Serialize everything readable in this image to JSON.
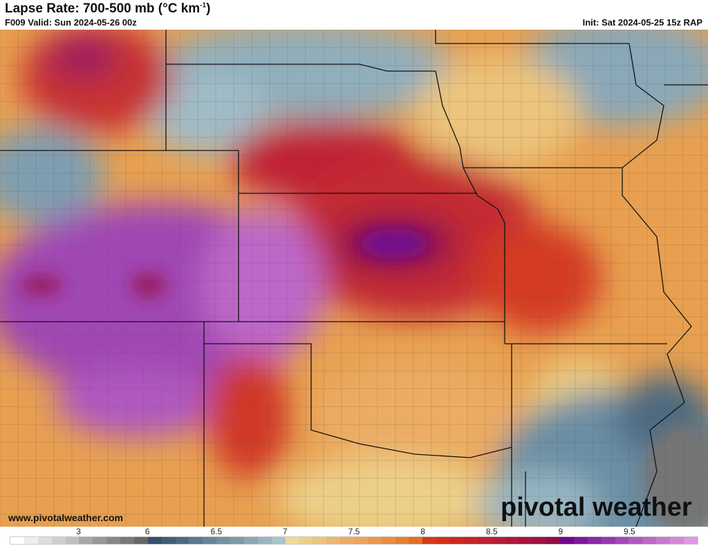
{
  "header": {
    "title": "Lapse Rate: 700-500 mb (°C km",
    "title_sup": "-1",
    "title_end": ")",
    "valid": "F009 Valid: Sun 2024-05-26 00z",
    "init": "Init: Sat 2024-05-25 15z RAP"
  },
  "footer": {
    "url": "www.pivotalweather.com",
    "brand": "pivotal weather"
  },
  "colorbar": {
    "labels": [
      {
        "text": "3",
        "cell": 5
      },
      {
        "text": "6",
        "cell": 10
      },
      {
        "text": "6.5",
        "cell": 15
      },
      {
        "text": "7",
        "cell": 20
      },
      {
        "text": "7.5",
        "cell": 25
      },
      {
        "text": "8",
        "cell": 30
      },
      {
        "text": "8.5",
        "cell": 35
      },
      {
        "text": "9",
        "cell": 40
      },
      {
        "text": "9.5",
        "cell": 45
      }
    ],
    "colors": [
      "#ffffff",
      "#eeeeee",
      "#dedede",
      "#d0d0d0",
      "#c0c0c0",
      "#a8a8a8",
      "#989898",
      "#888888",
      "#787878",
      "#686868",
      "#36506a",
      "#425e76",
      "#4e6a82",
      "#5a788e",
      "#678598",
      "#7492a2",
      "#8199a8",
      "#8ea6b2",
      "#9bb4bc",
      "#a8c4cc",
      "#ecdc94",
      "#ecd088",
      "#ecc47c",
      "#ecb870",
      "#ecac64",
      "#eca458",
      "#e8984c",
      "#e88c40",
      "#e48034",
      "#e07020",
      "#d83818",
      "#d43018",
      "#cc2820",
      "#c82428",
      "#c02030",
      "#b81c34",
      "#b01838",
      "#a8143c",
      "#a01044",
      "#900c48",
      "#740890",
      "#8018a0",
      "#8c28a8",
      "#9838b0",
      "#a448b8",
      "#b058c0",
      "#bc68c8",
      "#c878d0",
      "#d488d8",
      "#e098e0"
    ]
  },
  "map": {
    "background_color": "#e8a050",
    "border_color": "#111111"
  }
}
